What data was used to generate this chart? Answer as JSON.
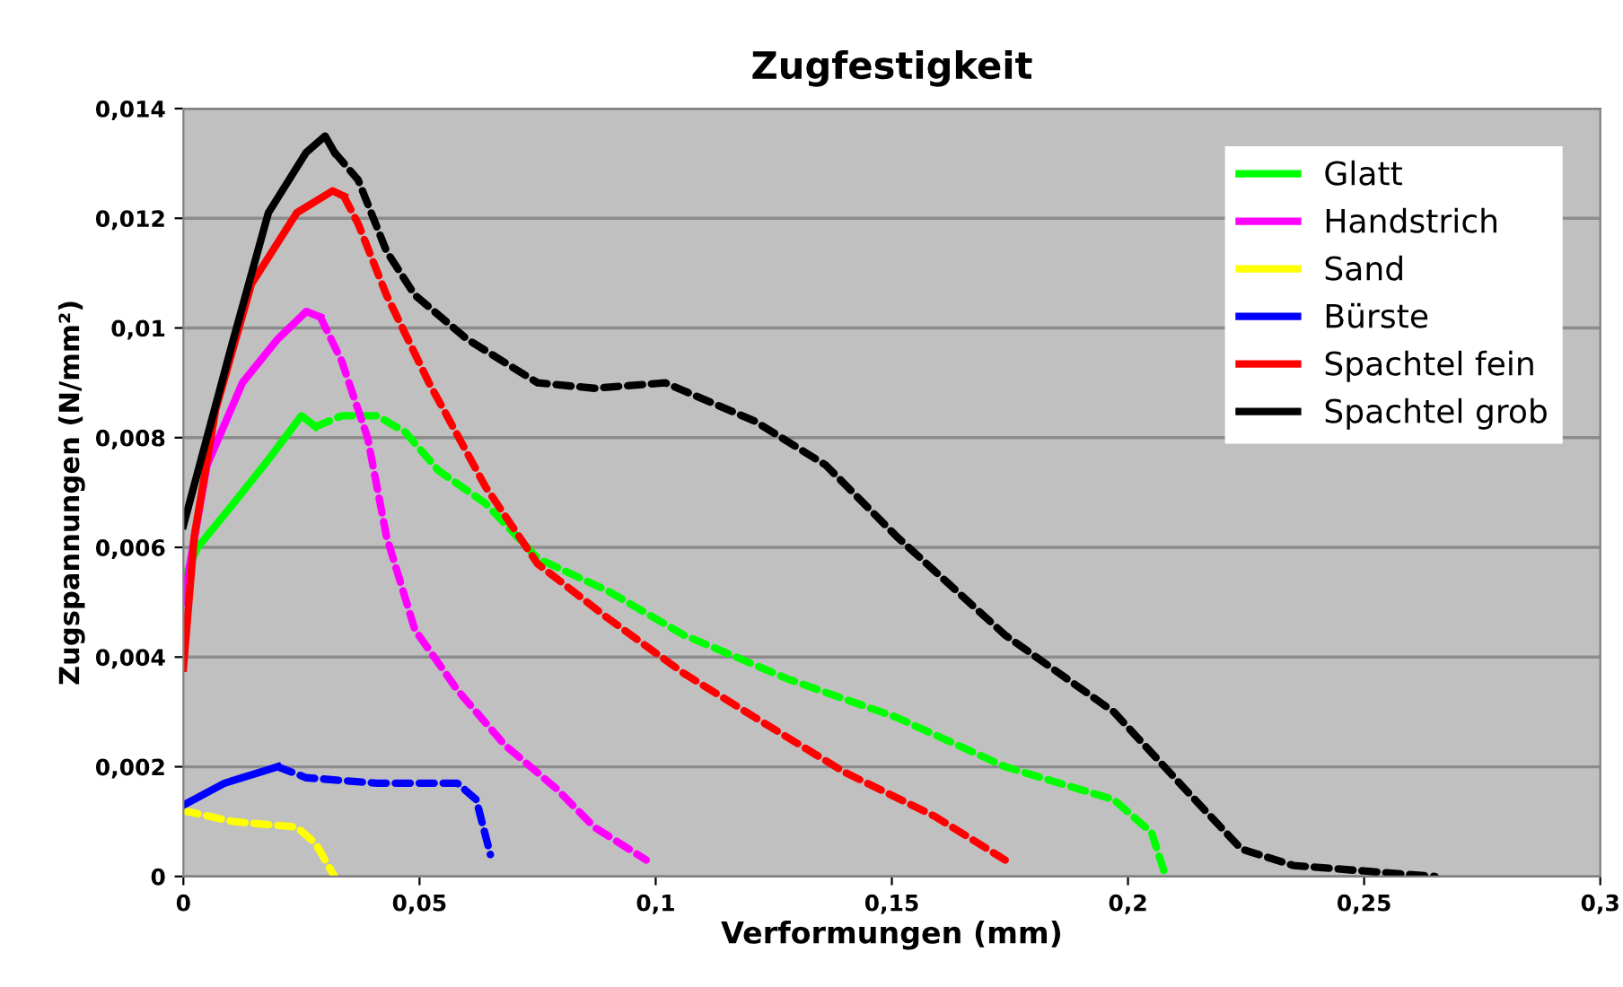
{
  "chart_data": {
    "type": "line",
    "title": "Zugfestigkeit",
    "xlabel": "Verformungen (mm)",
    "ylabel": "Zugspannungen (N/mm²)",
    "xlim": [
      0,
      0.3
    ],
    "ylim": [
      0,
      0.014
    ],
    "xticks": [
      0,
      {
        "value": 0.05,
        "label": "0,05"
      },
      {
        "value": 0.1,
        "label": "0,1"
      },
      {
        "value": 0.15,
        "label": "0,15"
      },
      {
        "value": 0.2,
        "label": "0,2"
      },
      {
        "value": 0.25,
        "label": "0,25"
      },
      {
        "value": 0.3,
        "label": "0,3"
      }
    ],
    "yticks": [
      0,
      {
        "value": 0.002,
        "label": "0,002"
      },
      {
        "value": 0.004,
        "label": "0,004"
      },
      {
        "value": 0.006,
        "label": "0,006"
      },
      {
        "value": 0.008,
        "label": "0,008"
      },
      {
        "value": 0.01,
        "label": "0,01"
      },
      {
        "value": 0.012,
        "label": "0,012"
      },
      {
        "value": 0.014,
        "label": "0,014"
      }
    ],
    "grid": "y",
    "legend": "top right",
    "marker": "none",
    "series": [
      {
        "name": "Glatt",
        "color": "#00ff00",
        "line_style": "solid",
        "x": [
          0,
          0.003,
          0.0106,
          0.018,
          0.025,
          0.028
        ],
        "values": [
          0.0054,
          0.006,
          0.0068,
          0.0076,
          0.0084,
          0.0082
        ]
      },
      {
        "name": "Handstrich",
        "color": "#ff00ff",
        "line_style": "solid",
        "x": [
          0,
          0.005,
          0.0125,
          0.02,
          0.026,
          0.029
        ],
        "values": [
          0.005,
          0.0075,
          0.009,
          0.0098,
          0.0103,
          0.0102
        ]
      },
      {
        "name": "Sand",
        "color": "#ffff00",
        "line_style": "dashed",
        "x": [
          0,
          0.0106,
          0.024,
          0.028,
          0.032
        ],
        "values": [
          0.0012,
          0.001,
          0.0009,
          0.0006,
          0
        ]
      },
      {
        "name": "Bürste",
        "color": "#0000ff",
        "line_style": "solid",
        "x": [
          0,
          0.0087,
          0.02
        ],
        "values": [
          0.0013,
          0.0017,
          0.002
        ]
      },
      {
        "name": "Spachtel fein",
        "color": "#ff0000",
        "line_style": "solid",
        "x": [
          0,
          0.0023,
          0.0068,
          0.0144,
          0.024,
          0.0316,
          0.034
        ],
        "values": [
          0.0038,
          0.0062,
          0.0085,
          0.0108,
          0.0121,
          0.0125,
          0.0124
        ]
      },
      {
        "name": "Spachtel grob",
        "color": "#000000",
        "line_style": "solid",
        "x": [
          0,
          0.0106,
          0.018,
          0.026,
          0.03,
          0.032
        ],
        "values": [
          0.0064,
          0.0098,
          0.0121,
          0.0132,
          0.0135,
          0.0132
        ]
      },
      {
        "color": "#00ff00",
        "line_style": "dashed",
        "x": [
          0.028,
          0.0335,
          0.041,
          0.047,
          0.054,
          0.064,
          0.075,
          0.09,
          0.106,
          0.128,
          0.151,
          0.174,
          0.197,
          0.205,
          0.208
        ],
        "values": [
          0.0082,
          0.0084,
          0.0084,
          0.0081,
          0.0074,
          0.0068,
          0.0058,
          0.0052,
          0.0044,
          0.0036,
          0.0029,
          0.002,
          0.0014,
          0.0008,
          0
        ]
      },
      {
        "color": "#ff00ff",
        "line_style": "dashed",
        "x": [
          0.029,
          0.0335,
          0.039,
          0.043,
          0.049,
          0.058,
          0.068,
          0.079,
          0.087,
          0.098
        ],
        "values": [
          0.0102,
          0.0094,
          0.008,
          0.0062,
          0.0045,
          0.0034,
          0.0024,
          0.0016,
          0.0009,
          0.0003
        ]
      },
      {
        "color": "#0000ff",
        "line_style": "dashed",
        "x": [
          0.02,
          0.026,
          0.041,
          0.058,
          0.062,
          0.065
        ],
        "values": [
          0.002,
          0.0018,
          0.0017,
          0.0017,
          0.0014,
          0.0004
        ]
      },
      {
        "color": "#ff0000",
        "line_style": "dashed",
        "x": [
          0.034,
          0.037,
          0.043,
          0.052,
          0.064,
          0.075,
          0.09,
          0.106,
          0.121,
          0.14,
          0.159,
          0.174
        ],
        "values": [
          0.0124,
          0.0119,
          0.0106,
          0.009,
          0.0071,
          0.0057,
          0.0047,
          0.0037,
          0.0029,
          0.0019,
          0.0011,
          0.0003
        ]
      },
      {
        "color": "#000000",
        "line_style": "dashed",
        "x": [
          0.032,
          0.037,
          0.043,
          0.049,
          0.06,
          0.075,
          0.087,
          0.102,
          0.121,
          0.136,
          0.151,
          0.174,
          0.197,
          0.212,
          0.224,
          0.235,
          0.25,
          0.265
        ],
        "values": [
          0.0132,
          0.0127,
          0.0114,
          0.0106,
          0.0098,
          0.009,
          0.0089,
          0.009,
          0.0083,
          0.0075,
          0.0062,
          0.0044,
          0.003,
          0.0016,
          0.0005,
          0.0002,
          0.0001,
          0
        ]
      }
    ]
  }
}
